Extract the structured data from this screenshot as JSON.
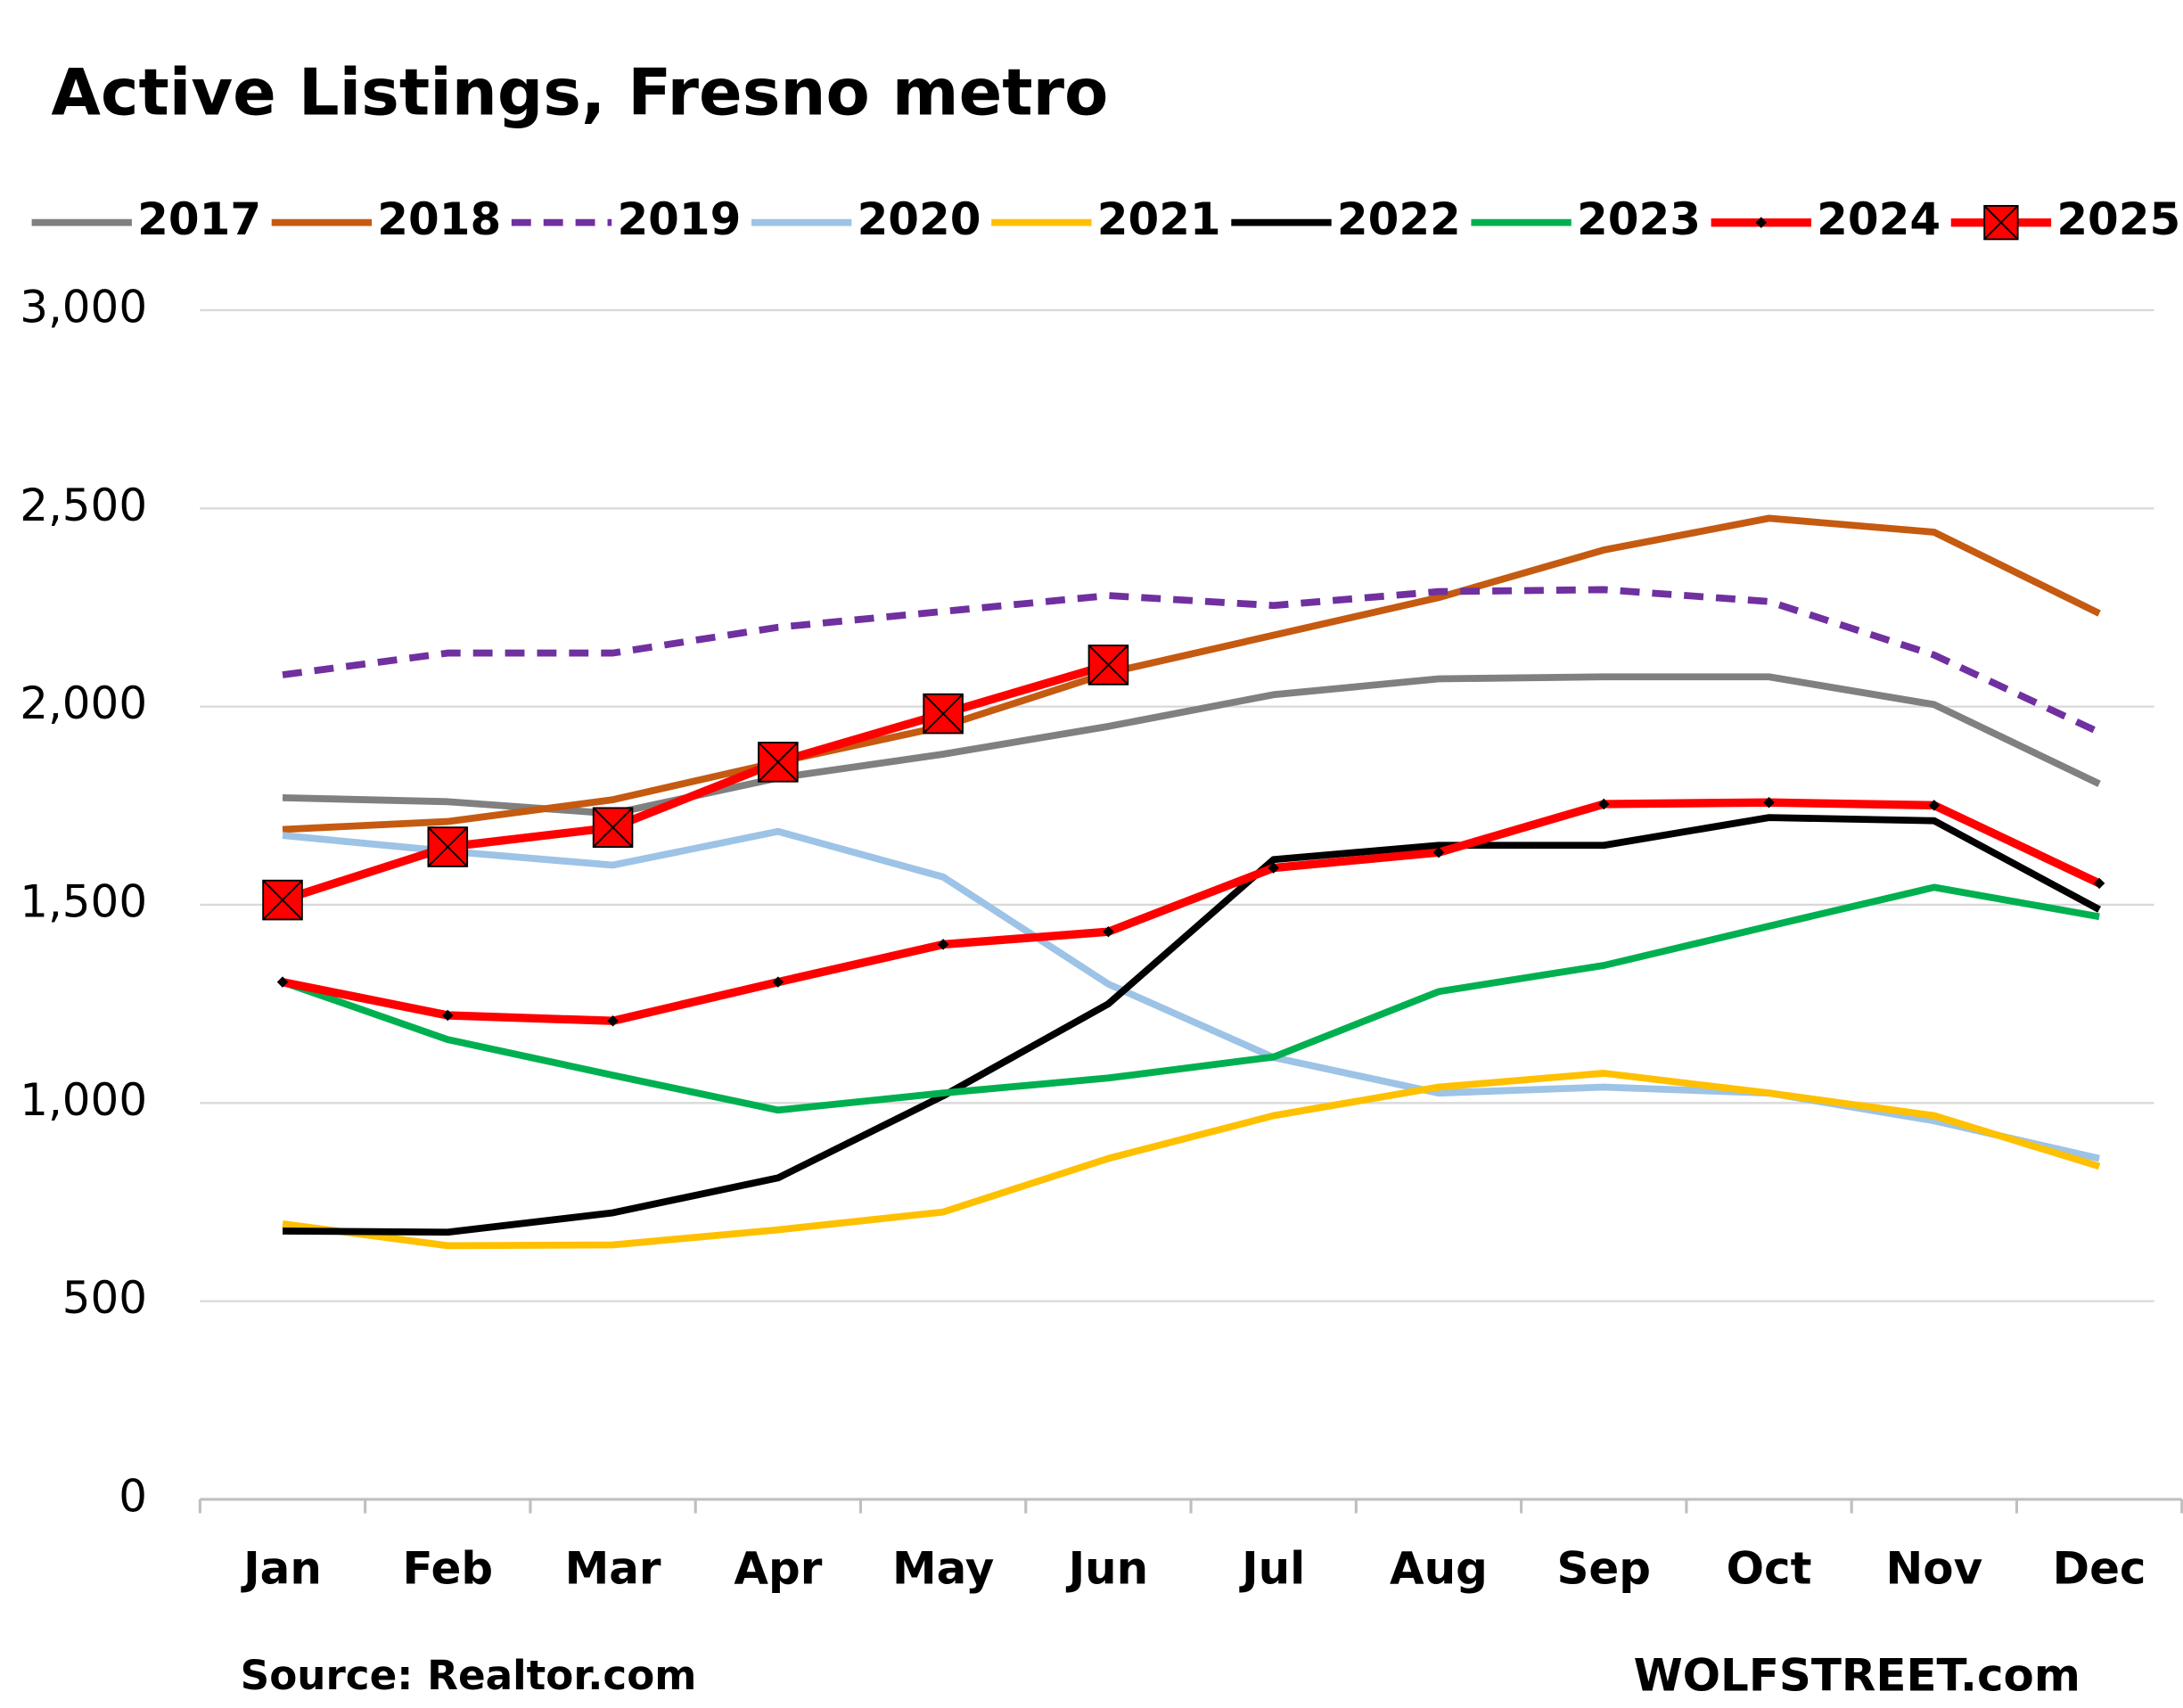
{
  "chart_data": {
    "type": "line",
    "title": "Active Listings, Fresno metro",
    "source": "Source: Realtor.com",
    "credit": "WOLFSTREET.com",
    "categories": [
      "Jan",
      "Feb",
      "Mar",
      "Apr",
      "May",
      "Jun",
      "Jul",
      "Aug",
      "Sep",
      "Oct",
      "Nov",
      "Dec"
    ],
    "ylim": [
      0,
      3000
    ],
    "yticks": [
      0,
      500,
      {
        "value": 1000,
        "label": "1,000"
      },
      {
        "value": 1500,
        "label": "1,500"
      },
      {
        "value": 2000,
        "label": "2,000"
      },
      {
        "value": 2500,
        "label": "2,500"
      },
      {
        "value": 3000,
        "label": "3,000"
      }
    ],
    "grid": true,
    "legend": "top",
    "series": [
      {
        "name": "2017",
        "color": "#808080",
        "values": [
          1770,
          1760,
          1730,
          1820,
          1880,
          1950,
          2030,
          2070,
          2075,
          2075,
          2005,
          1805
        ]
      },
      {
        "name": "2018",
        "color": "#c55a11",
        "values": [
          1690,
          1710,
          1765,
          1860,
          1950,
          2085,
          2180,
          2275,
          2395,
          2475,
          2440,
          2235
        ]
      },
      {
        "name": "2019",
        "color": "#7030a0",
        "dash": true,
        "values": [
          2080,
          2135,
          2135,
          2200,
          2240,
          2280,
          2255,
          2290,
          2295,
          2265,
          2130,
          1935
        ]
      },
      {
        "name": "2020",
        "color": "#9dc3e6",
        "values": [
          1675,
          1635,
          1600,
          1685,
          1570,
          1300,
          1115,
          1025,
          1040,
          1025,
          955,
          860
        ]
      },
      {
        "name": "2021",
        "color": "#ffc000",
        "values": [
          695,
          640,
          642,
          680,
          725,
          860,
          968,
          1040,
          1075,
          1025,
          968,
          840
        ]
      },
      {
        "name": "2022",
        "color": "#000000",
        "values": [
          677,
          674,
          723,
          811,
          1018,
          1250,
          1614,
          1650,
          1650,
          1720,
          1712,
          1488
        ]
      },
      {
        "name": "2023",
        "color": "#00b050",
        "values": [
          1305,
          1160,
          1070,
          982,
          1025,
          1063,
          1116,
          1281,
          1347,
          1446,
          1544,
          1470
        ]
      },
      {
        "name": "2024",
        "color": "#ff0000",
        "marker": "diamond",
        "values": [
          1305,
          1221,
          1207,
          1305,
          1400,
          1432,
          1593,
          1632,
          1754,
          1758,
          1751,
          1554
        ]
      },
      {
        "name": "2025",
        "color": "#ff0000",
        "marker": "x-square",
        "values": [
          1512,
          1646,
          1695,
          1860,
          1982,
          2105,
          null,
          null,
          null,
          null,
          null,
          null
        ]
      }
    ]
  }
}
